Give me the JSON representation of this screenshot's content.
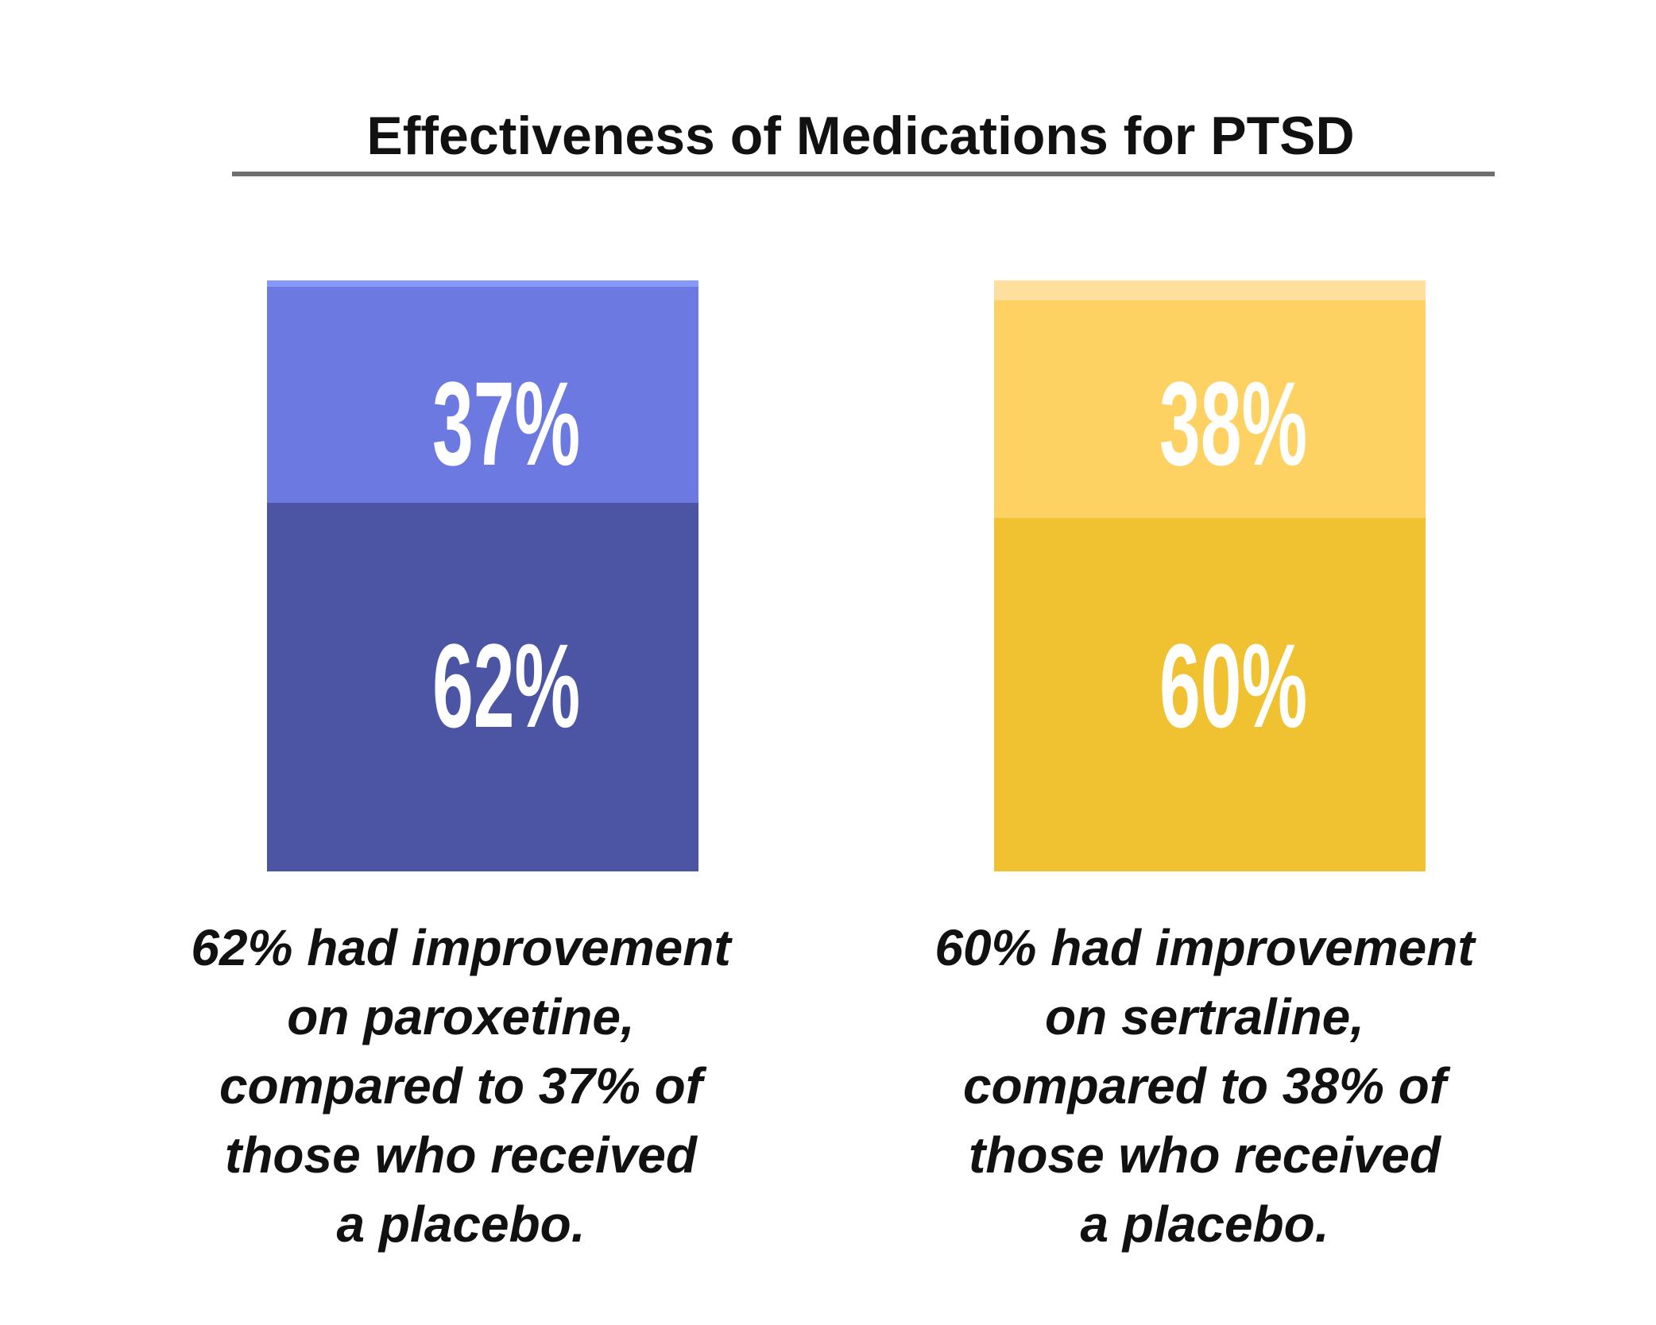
{
  "chart_data": {
    "type": "bar",
    "title": "Effectiveness of Medications for PTSD",
    "categories": [
      "paroxetine",
      "sertraline"
    ],
    "series": [
      {
        "values": [
          62,
          60
        ],
        "colors": [
          "#4c55a3",
          "#f0c232"
        ]
      },
      {
        "values": [
          37,
          38
        ],
        "colors": [
          "#6b79e0",
          "#fed262"
        ]
      }
    ],
    "labels": {
      "paroxetine": {
        "improved": "62%",
        "placebo": "37%"
      },
      "sertraline": {
        "improved": "60%",
        "placebo": "38%"
      }
    },
    "captions": [
      [
        "62% had improvement",
        "on paroxetine,",
        "compared to 37% of",
        "those who received",
        "a placebo."
      ],
      [
        "60% had improvement",
        "on sertraline,",
        "compared to 38% of",
        "those who received",
        "a placebo."
      ]
    ],
    "ylim": [
      0,
      100
    ]
  }
}
